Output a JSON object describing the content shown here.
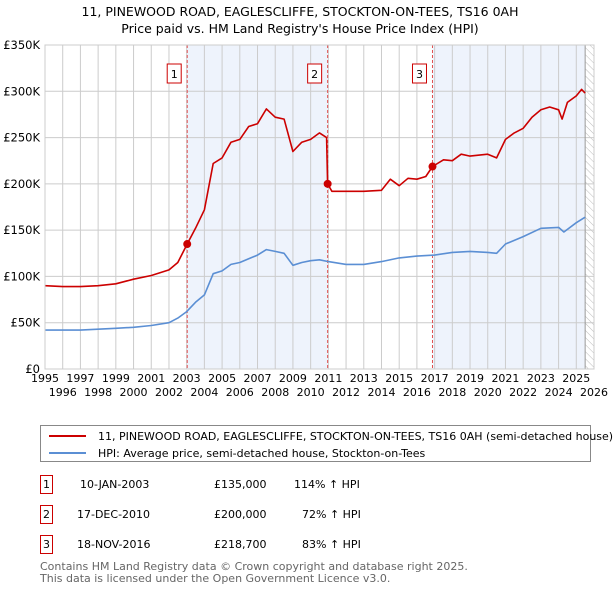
{
  "chart_data": {
    "type": "line",
    "title": "11, PINEWOOD ROAD, EAGLESCLIFFE, STOCKTON-ON-TEES, TS16 0AH",
    "subtitle": "Price paid vs. HM Land Registry's House Price Index (HPI)",
    "xlim": [
      1995,
      2026
    ],
    "ylim": [
      0,
      350000
    ],
    "grid": true,
    "x_ticks": [
      "1995",
      "1996",
      "1997",
      "1998",
      "1999",
      "2000",
      "2001",
      "2002",
      "2003",
      "2004",
      "2005",
      "2006",
      "2007",
      "2008",
      "2009",
      "2010",
      "2011",
      "2012",
      "2013",
      "2014",
      "2015",
      "2016",
      "2017",
      "2018",
      "2019",
      "2020",
      "2021",
      "2022",
      "2023",
      "2024",
      "2025",
      "2026"
    ],
    "y_ticks": [
      {
        "v": 0,
        "label": "£0"
      },
      {
        "v": 50000,
        "label": "£50K"
      },
      {
        "v": 100000,
        "label": "£100K"
      },
      {
        "v": 150000,
        "label": "£150K"
      },
      {
        "v": 200000,
        "label": "£200K"
      },
      {
        "v": 250000,
        "label": "£250K"
      },
      {
        "v": 300000,
        "label": "£300K"
      },
      {
        "v": 350000,
        "label": "£350K"
      }
    ],
    "series": [
      {
        "name": "11, PINEWOOD ROAD, EAGLESCLIFFE, STOCKTON-ON-TEES, TS16 0AH (semi-detached house)",
        "color": "#cc0000",
        "x": [
          1995,
          1996,
          1997,
          1998,
          1999,
          2000,
          2001,
          2002,
          2002.5,
          2003.03,
          2003.5,
          2004,
          2004.5,
          2005,
          2005.5,
          2006,
          2006.5,
          2007,
          2007.5,
          2008,
          2008.5,
          2009,
          2009.5,
          2010,
          2010.5,
          2010.9,
          2010.96,
          2011.2,
          2012,
          2013,
          2014,
          2014.5,
          2015,
          2015.5,
          2016,
          2016.5,
          2016.88,
          2017.5,
          2018,
          2018.5,
          2019,
          2020,
          2020.5,
          2021,
          2021.5,
          2022,
          2022.5,
          2023,
          2023.5,
          2024,
          2024.2,
          2024.5,
          2025,
          2025.3,
          2025.5
        ],
        "y": [
          90000,
          89000,
          89000,
          90000,
          92000,
          97000,
          101000,
          107000,
          115000,
          135000,
          152000,
          172000,
          222000,
          228000,
          245000,
          248000,
          262000,
          265000,
          281000,
          272000,
          270000,
          235000,
          245000,
          248000,
          255000,
          250000,
          200000,
          192000,
          192000,
          192000,
          193000,
          205000,
          198000,
          206000,
          205000,
          208000,
          218700,
          226000,
          225000,
          232000,
          230000,
          232000,
          228000,
          248000,
          255000,
          260000,
          272000,
          280000,
          283000,
          280000,
          270000,
          288000,
          295000,
          302000,
          298000
        ]
      },
      {
        "name": "HPI: Average price, semi-detached house, Stockton-on-Tees",
        "color": "#5b8fd4",
        "x": [
          1995,
          1996,
          1997,
          1998,
          1999,
          2000,
          2001,
          2002,
          2002.5,
          2003,
          2003.5,
          2004,
          2004.5,
          2005,
          2005.5,
          2006,
          2006.5,
          2007,
          2007.5,
          2008,
          2008.5,
          2009,
          2009.5,
          2010,
          2010.5,
          2011,
          2012,
          2013,
          2014,
          2015,
          2016,
          2017,
          2018,
          2019,
          2020,
          2020.5,
          2021,
          2022,
          2023,
          2024,
          2024.3,
          2025,
          2025.5
        ],
        "y": [
          42000,
          42000,
          42000,
          43000,
          44000,
          45000,
          47000,
          50000,
          55000,
          62000,
          72000,
          80000,
          103000,
          106000,
          113000,
          115000,
          119000,
          123000,
          129000,
          127000,
          125000,
          112000,
          115000,
          117000,
          118000,
          116000,
          113000,
          113000,
          116000,
          120000,
          122000,
          123000,
          126000,
          127000,
          126000,
          125000,
          135000,
          143000,
          152000,
          153000,
          148000,
          158000,
          164000
        ]
      }
    ],
    "sales": [
      {
        "id": "1",
        "x": 2003.03,
        "y": 135000,
        "date": "10-JAN-2003",
        "price": "£135,000",
        "hpi": "114% ↑ HPI"
      },
      {
        "id": "2",
        "x": 2010.96,
        "y": 200000,
        "date": "17-DEC-2010",
        "price": "£200,000",
        "hpi": "72% ↑ HPI"
      },
      {
        "id": "3",
        "x": 2016.88,
        "y": 218700,
        "date": "18-NOV-2016",
        "price": "£218,700",
        "hpi": "83% ↑ HPI"
      }
    ],
    "shaded_ranges": [
      [
        2003.03,
        2010.96
      ],
      [
        2016.88,
        2025.5
      ]
    ],
    "hatched_from": 2025.5
  },
  "legend": {
    "red_label": "11, PINEWOOD ROAD, EAGLESCLIFFE, STOCKTON-ON-TEES, TS16 0AH (semi-detached house)",
    "blue_label": "HPI: Average price, semi-detached house, Stockton-on-Tees"
  },
  "footer": {
    "line1": "Contains HM Land Registry data © Crown copyright and database right 2025.",
    "line2": "This data is licensed under the Open Government Licence v3.0."
  }
}
